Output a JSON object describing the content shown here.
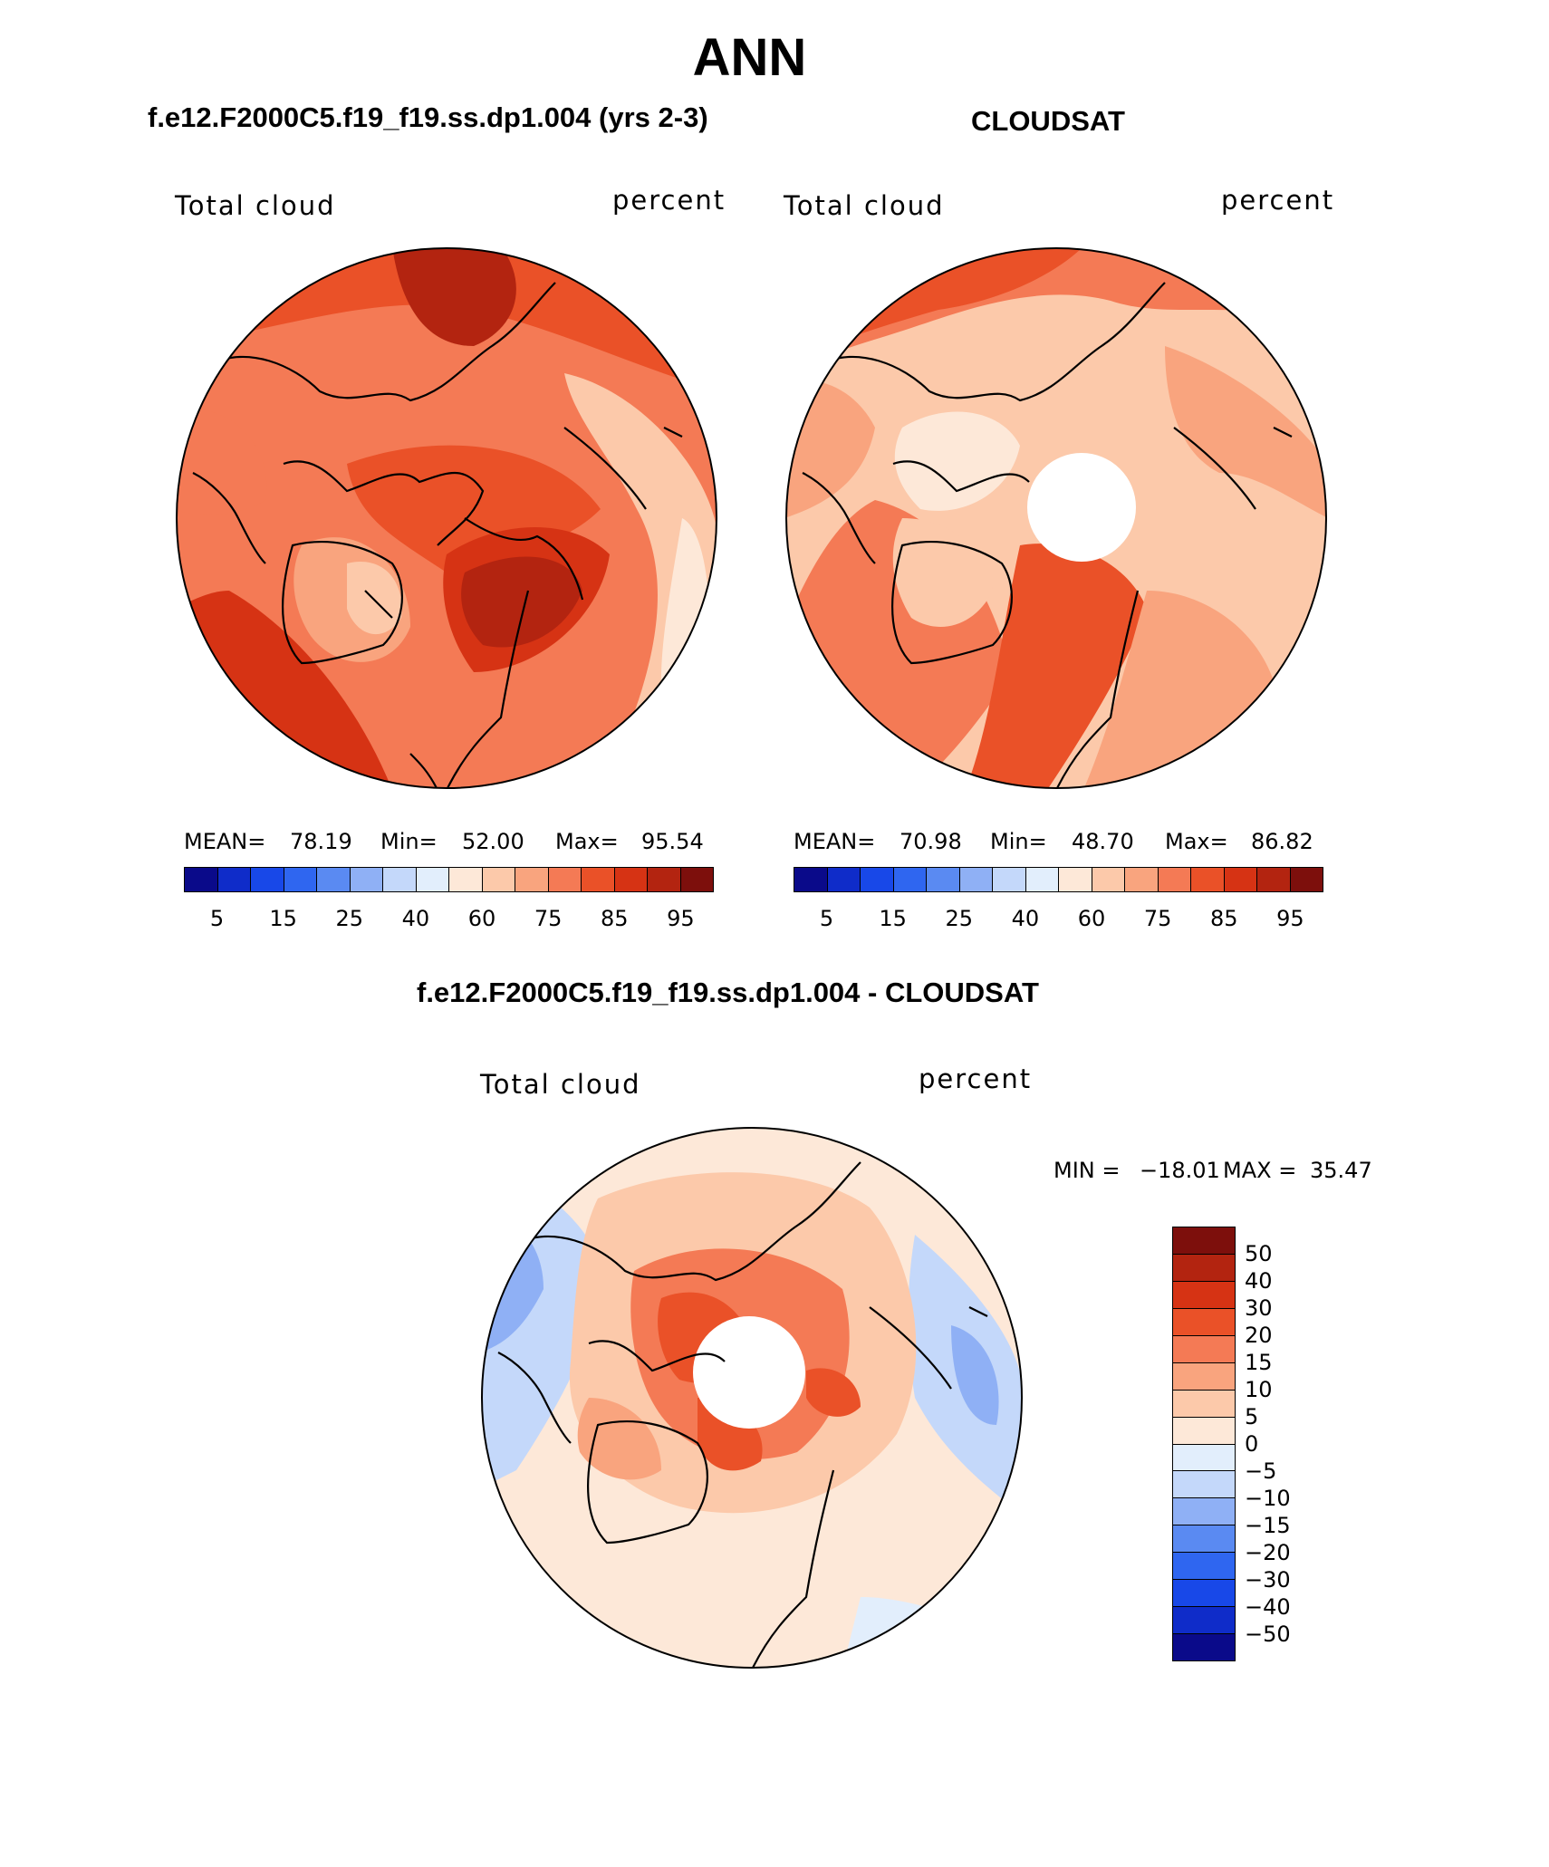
{
  "figure": {
    "title": "ANN",
    "panel_left_title": "f.e12.F2000C5.f19_f19.ss.dp1.004 (yrs 2-3)",
    "panel_right_title": "CLOUDSAT",
    "panel_diff_title": "f.e12.F2000C5.f19_f19.ss.dp1.004 - CLOUDSAT"
  },
  "colors": {
    "absolute_scale": [
      "#0a0a8a",
      "#0f2cc9",
      "#1848e8",
      "#2f66f0",
      "#5a8af2",
      "#8fb0f5",
      "#c4d8fa",
      "#e2eefc",
      "#fde8d8",
      "#fcc9aa",
      "#f9a47e",
      "#f47a55",
      "#ea5128",
      "#d63314",
      "#b32410",
      "#7d0f0c"
    ],
    "difference_scale": [
      "#7d0f0c",
      "#b32410",
      "#d63314",
      "#ea5128",
      "#f47a55",
      "#f9a47e",
      "#fcc9aa",
      "#fde8d8",
      "#e2eefc",
      "#c4d8fa",
      "#8fb0f5",
      "#5a8af2",
      "#2f66f0",
      "#1848e8",
      "#0f2cc9",
      "#0a0a8a"
    ]
  },
  "chart_data": [
    {
      "type": "heatmap",
      "projection": "north-polar-stereographic",
      "title": "f.e12.F2000C5.f19_f19.ss.dp1.004 (yrs 2-3)",
      "variable": "Total cloud",
      "units": "percent",
      "stats": {
        "mean_label": "MEAN=",
        "mean": "78.19",
        "min_label": "Min=",
        "min": "52.00",
        "max_label": "Max=",
        "max": "95.54"
      },
      "colorbar": {
        "orientation": "horizontal",
        "tick_labels": [
          "5",
          "15",
          "25",
          "40",
          "60",
          "75",
          "85",
          "95"
        ]
      }
    },
    {
      "type": "heatmap",
      "projection": "north-polar-stereographic",
      "title": "CLOUDSAT",
      "variable": "Total cloud",
      "units": "percent",
      "pole_missing": true,
      "stats": {
        "mean_label": "MEAN=",
        "mean": "70.98",
        "min_label": "Min=",
        "min": "48.70",
        "max_label": "Max=",
        "max": "86.82"
      },
      "colorbar": {
        "orientation": "horizontal",
        "tick_labels": [
          "5",
          "15",
          "25",
          "40",
          "60",
          "75",
          "85",
          "95"
        ]
      }
    },
    {
      "type": "heatmap",
      "projection": "north-polar-stereographic",
      "title": "f.e12.F2000C5.f19_f19.ss.dp1.004 - CLOUDSAT",
      "variable": "Total cloud",
      "units": "percent",
      "pole_missing": true,
      "stats": {
        "min_label": "MIN =",
        "min": "−18.01",
        "max_label": "MAX =",
        "max": "35.47"
      },
      "colorbar": {
        "orientation": "vertical",
        "tick_labels": [
          "50",
          "40",
          "30",
          "20",
          "15",
          "10",
          "5",
          "0",
          "−5",
          "−10",
          "−15",
          "−20",
          "−30",
          "−40",
          "−50"
        ]
      }
    }
  ]
}
